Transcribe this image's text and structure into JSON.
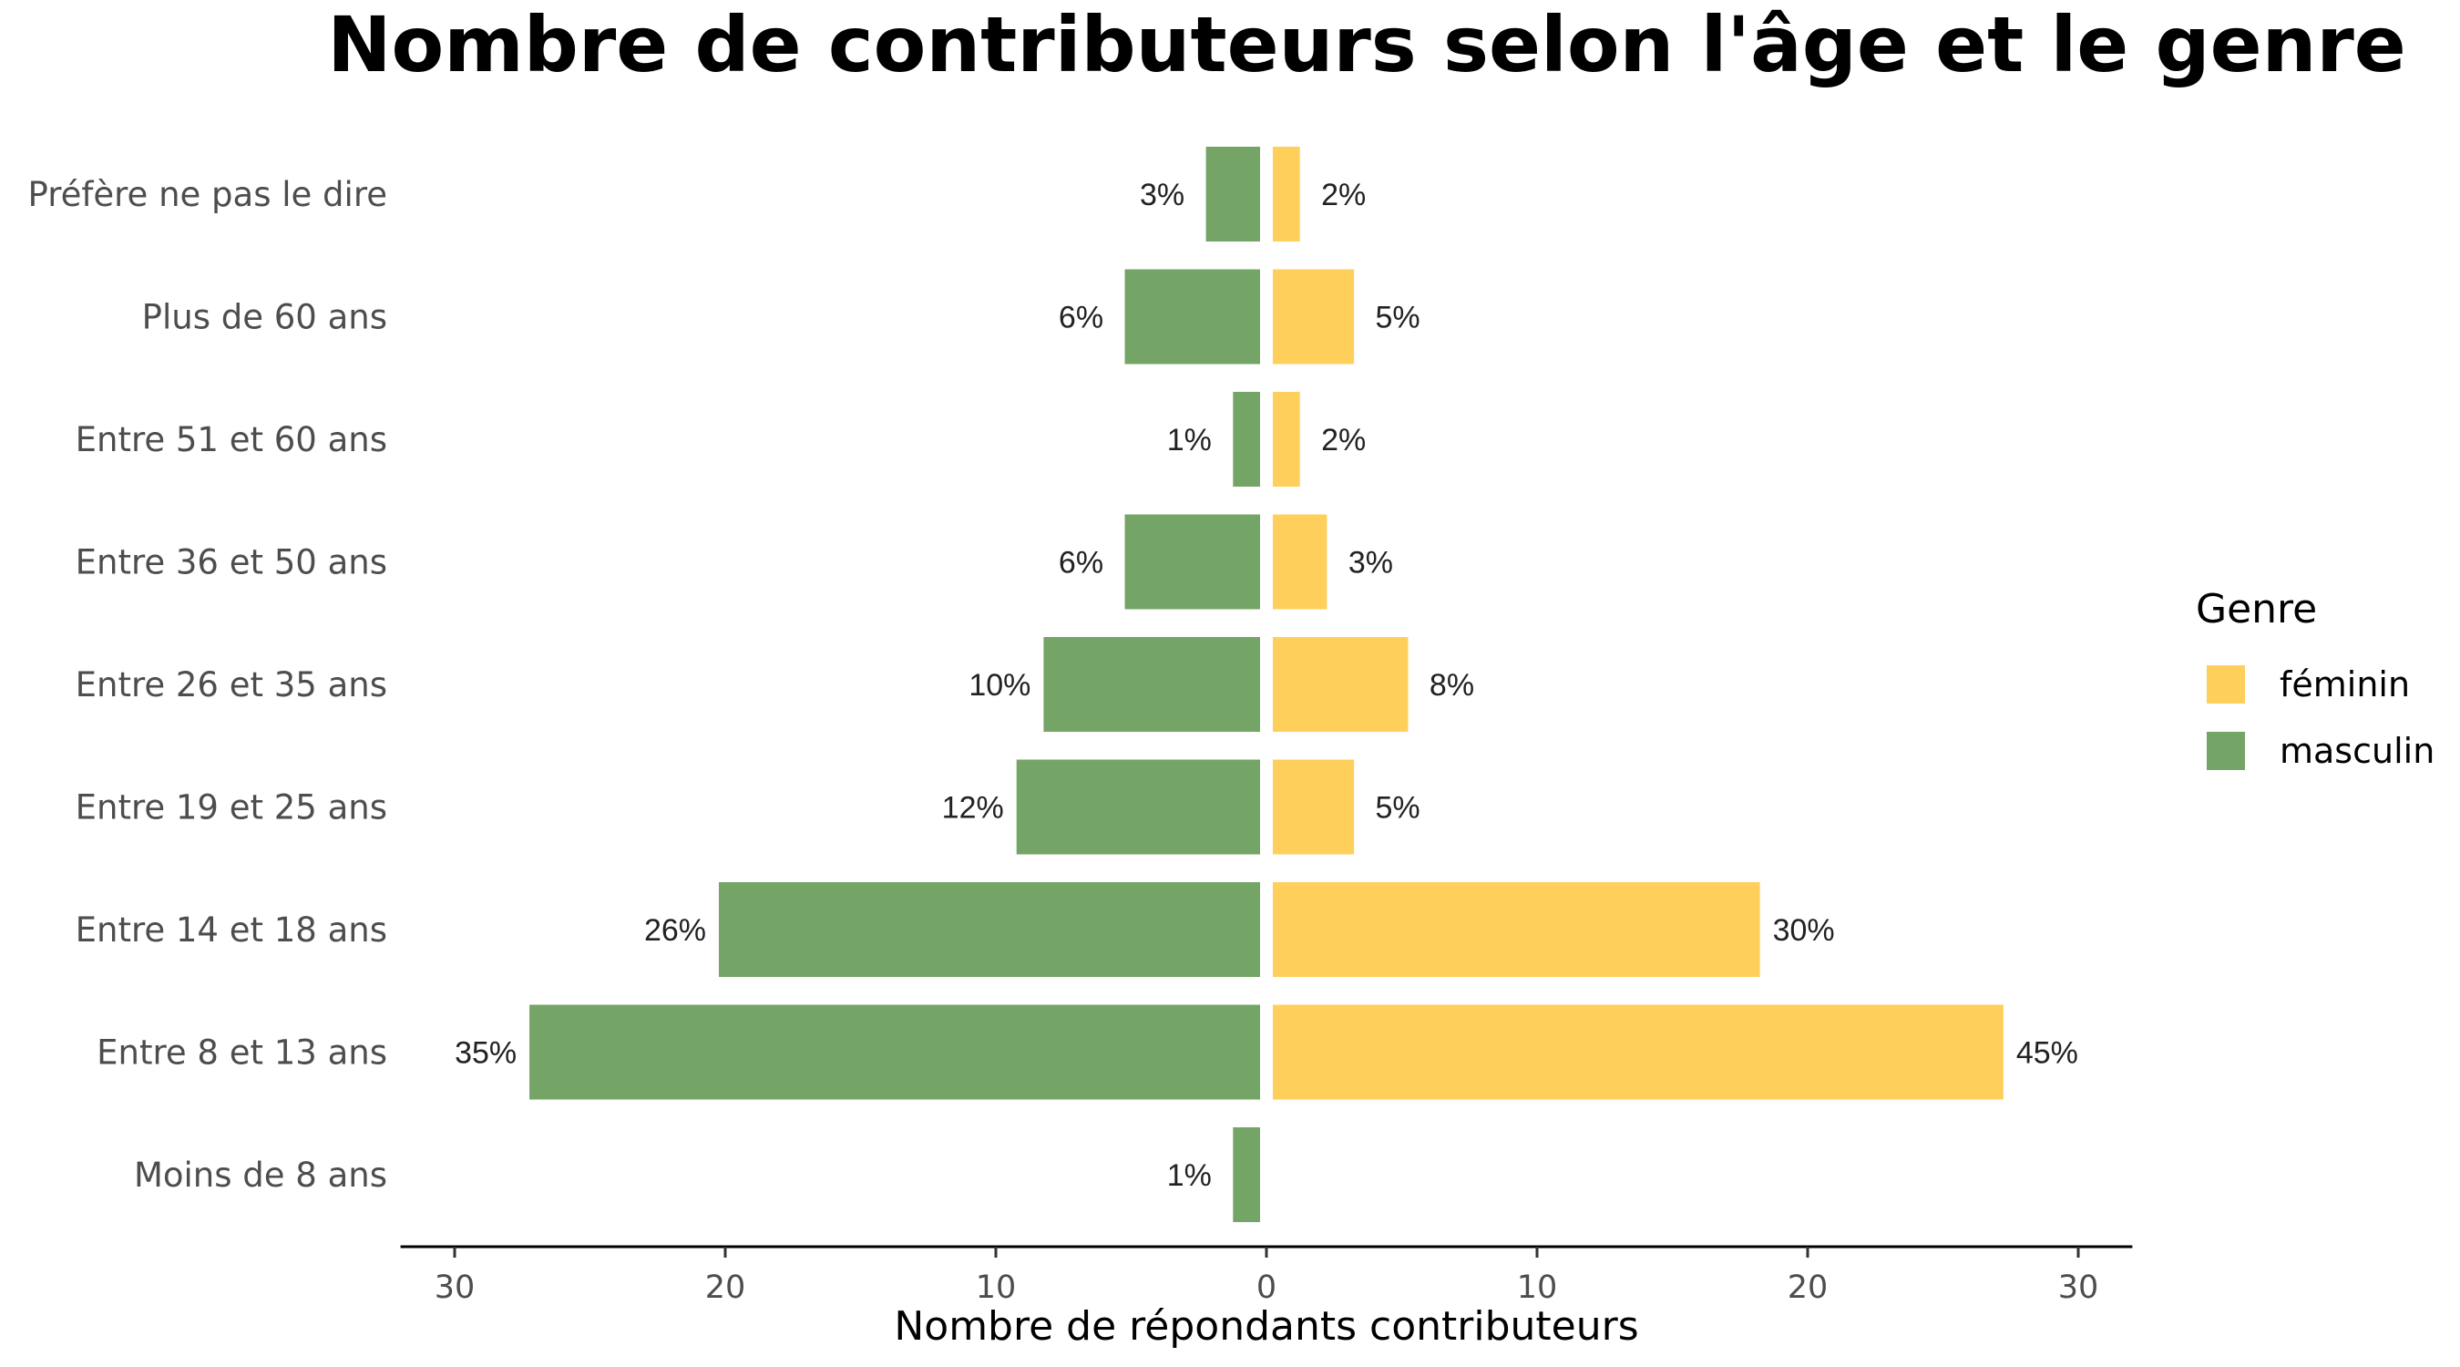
{
  "chart_data": {
    "type": "bar",
    "orientation": "horizontal",
    "layout": "diverging",
    "title": "Nombre de contributeurs selon l'âge et le genre",
    "xlabel": "Nombre de répondants contributeurs",
    "ylabel": "",
    "categories": [
      "Préfère ne pas le dire",
      "Plus de 60 ans",
      "Entre 51 et 60 ans",
      "Entre 36 et 50 ans",
      "Entre 26 et 35 ans",
      "Entre 19 et 25 ans",
      "Entre 14 et 18 ans",
      "Entre 8 et 13 ans",
      "Moins de 8 ans"
    ],
    "series": [
      {
        "name": "masculin",
        "side": "left",
        "color": "#74a466",
        "values": [
          2,
          5,
          1,
          5,
          8,
          9,
          20,
          27,
          1
        ],
        "labels": [
          "3%",
          "6%",
          "1%",
          "6%",
          "10%",
          "12%",
          "26%",
          "35%",
          "1%"
        ]
      },
      {
        "name": "féminin",
        "side": "right",
        "color": "#ffcf5c",
        "values": [
          1,
          3,
          1,
          2,
          5,
          3,
          18,
          27,
          0
        ],
        "labels": [
          "2%",
          "5%",
          "2%",
          "3%",
          "8%",
          "5%",
          "30%",
          "45%",
          ""
        ]
      }
    ],
    "xlim": [
      -32,
      32
    ],
    "xticks": [
      -30,
      -20,
      -10,
      0,
      10,
      20,
      30
    ],
    "xtick_labels": [
      "30",
      "20",
      "10",
      "0",
      "10",
      "20",
      "30"
    ],
    "grid": false,
    "legend": {
      "title": "Genre",
      "position": "right",
      "entries": [
        {
          "label": "féminin",
          "color": "#ffcf5c"
        },
        {
          "label": "masculin",
          "color": "#74a466"
        }
      ]
    }
  }
}
